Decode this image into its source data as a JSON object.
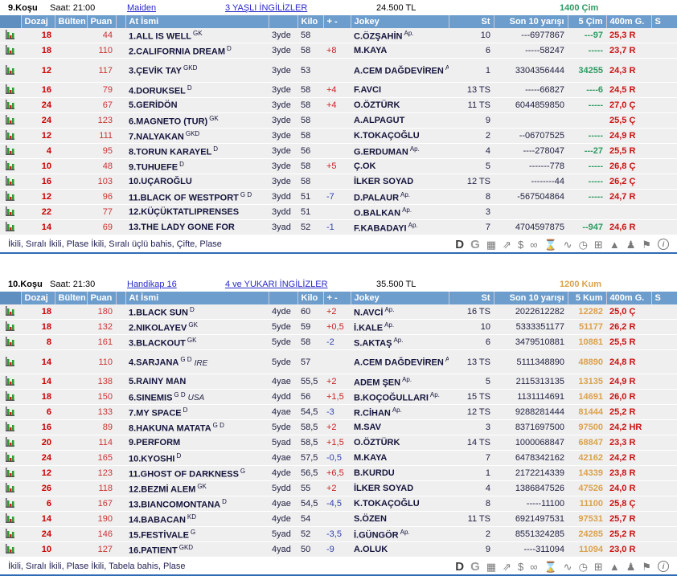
{
  "colors": {
    "header_bar": "#6d9dcc",
    "race1_accent": "#2e9b62",
    "race2_accent": "#dba24e",
    "negative_diff": "#3344aa",
    "positive_diff": "#cc2222",
    "g400_red": "#cc1111",
    "link_blue": "#2929c8"
  },
  "races": [
    {
      "race_no": "9.Koşu",
      "time_label": "Saat: 21:00",
      "race_type": "Maiden",
      "group": "3 YAŞLI İNGİLİZLER",
      "prize": "24.500 TL",
      "distance": "1400 Çim",
      "accent_color": "#2e9b62",
      "columns": [
        "",
        "Dozaj",
        "Bülten",
        "Puan",
        "",
        "At İsmi",
        "",
        "Kilo",
        "+ -",
        "Jokey",
        "St",
        "Son 10 yarışı",
        "5 Çim",
        "400m G.",
        "S"
      ],
      "bets": "İkili, Sıralı İkili, Plase İkili, Sıralı üçlü bahis, Çifte, Plase",
      "horses": [
        {
          "dozaj": "18",
          "bulten": "",
          "puan": "44",
          "name": "1.ALL IS WELL",
          "sup": "GK",
          "country": "",
          "age": "3yde",
          "kilo": "58",
          "diff": "",
          "jockey": "C.ÖZŞAHİN",
          "jockey_sup": "Ap.",
          "st": "10",
          "son10": "---6977867",
          "last5": "---97",
          "g400": "25,3 R",
          "tall": false
        },
        {
          "dozaj": "18",
          "bulten": "",
          "puan": "110",
          "name": "2.CALIFORNIA DREAM",
          "sup": "D",
          "country": "",
          "age": "3yde",
          "kilo": "58",
          "diff": "+8",
          "jockey": "M.KAYA",
          "jockey_sup": "",
          "st": "6",
          "son10": "-----58247",
          "last5": "-----",
          "g400": "23,7 R",
          "tall": false
        },
        {
          "dozaj": "12",
          "bulten": "",
          "puan": "117",
          "name": "3.ÇEVİK TAY",
          "sup": "GKD",
          "country": "",
          "age": "3yde",
          "kilo": "53",
          "diff": "",
          "jockey": "A.CEM DAĞDEVİREN",
          "jockey_sup": "Ap.",
          "st": "1",
          "son10": "3304356444",
          "last5": "34255",
          "g400": "24,3 R",
          "tall": true
        },
        {
          "dozaj": "16",
          "bulten": "",
          "puan": "79",
          "name": "4.DORUKSEL",
          "sup": "D",
          "country": "",
          "age": "3yde",
          "kilo": "58",
          "diff": "+4",
          "jockey": "F.AVCI",
          "jockey_sup": "",
          "st": "13 TS",
          "son10": "-----66827",
          "last5": "----6",
          "g400": "24,5 R",
          "tall": false
        },
        {
          "dozaj": "24",
          "bulten": "",
          "puan": "67",
          "name": "5.GERİDÖN",
          "sup": "",
          "country": "",
          "age": "3yde",
          "kilo": "58",
          "diff": "+4",
          "jockey": "O.ÖZTÜRK",
          "jockey_sup": "",
          "st": "11 TS",
          "son10": "6044859850",
          "last5": "-----",
          "g400": "27,0 Ç",
          "tall": false
        },
        {
          "dozaj": "24",
          "bulten": "",
          "puan": "123",
          "name": "6.MAGNETO (TUR)",
          "sup": "GK",
          "country": "",
          "age": "3yde",
          "kilo": "58",
          "diff": "",
          "jockey": "A.ALPAGUT",
          "jockey_sup": "",
          "st": "9",
          "son10": "",
          "last5": "",
          "g400": "25,5 Ç",
          "tall": false
        },
        {
          "dozaj": "12",
          "bulten": "",
          "puan": "111",
          "name": "7.NALYAKAN",
          "sup": "GKD",
          "country": "",
          "age": "3yde",
          "kilo": "58",
          "diff": "",
          "jockey": "K.TOKAÇOĞLU",
          "jockey_sup": "",
          "st": "2",
          "son10": "--06707525",
          "last5": "-----",
          "g400": "24,9 R",
          "tall": false
        },
        {
          "dozaj": "4",
          "bulten": "",
          "puan": "95",
          "name": "8.TORUN KARAYEL",
          "sup": "D",
          "country": "",
          "age": "3yde",
          "kilo": "56",
          "diff": "",
          "jockey": "G.ERDUMAN",
          "jockey_sup": "Ap.",
          "st": "4",
          "son10": "----278047",
          "last5": "---27",
          "g400": "25,5 R",
          "tall": false
        },
        {
          "dozaj": "10",
          "bulten": "",
          "puan": "48",
          "name": "9.TUHUEFE",
          "sup": "D",
          "country": "",
          "age": "3yde",
          "kilo": "58",
          "diff": "+5",
          "jockey": "Ç.OK",
          "jockey_sup": "",
          "st": "5",
          "son10": "-------778",
          "last5": "-----",
          "g400": "26,8 Ç",
          "tall": false
        },
        {
          "dozaj": "16",
          "bulten": "",
          "puan": "103",
          "name": "10.UÇAROĞLU",
          "sup": "",
          "country": "",
          "age": "3yde",
          "kilo": "58",
          "diff": "",
          "jockey": "İLKER SOYAD",
          "jockey_sup": "",
          "st": "12 TS",
          "son10": "--------44",
          "last5": "-----",
          "g400": "26,2 Ç",
          "tall": false
        },
        {
          "dozaj": "12",
          "bulten": "",
          "puan": "96",
          "name": "11.BLACK OF WESTPORT",
          "sup": "G D",
          "country": "",
          "age": "3ydd",
          "kilo": "51",
          "diff": "-7",
          "jockey": "D.PALAUR",
          "jockey_sup": "Ap.",
          "st": "8",
          "son10": "-567504864",
          "last5": "-----",
          "g400": "24,7 R",
          "tall": false
        },
        {
          "dozaj": "22",
          "bulten": "",
          "puan": "77",
          "name": "12.KÜÇÜKTATLIPRENSES",
          "sup": "",
          "country": "",
          "age": "3ydd",
          "kilo": "51",
          "diff": "",
          "jockey": "O.BALKAN",
          "jockey_sup": "Ap.",
          "st": "3",
          "son10": "",
          "last5": "",
          "g400": "",
          "tall": false
        },
        {
          "dozaj": "14",
          "bulten": "",
          "puan": "69",
          "name": "13.THE LADY GONE FOR",
          "sup": "",
          "country": "",
          "age": "3yad",
          "kilo": "52",
          "diff": "-1",
          "jockey": "F.KABADAYI",
          "jockey_sup": "Ap.",
          "st": "7",
          "son10": "4704597875",
          "last5": "--947",
          "g400": "24,6 R",
          "tall": false
        }
      ]
    },
    {
      "race_no": "10.Koşu",
      "time_label": "Saat: 21:30",
      "race_type": "Handikap 16",
      "group": "4 ve YUKARI İNGİLİZLER",
      "prize": "35.500 TL",
      "distance": "1200 Kum",
      "accent_color": "#dba24e",
      "columns": [
        "",
        "Dozaj",
        "Bülten",
        "Puan",
        "",
        "At İsmi",
        "",
        "Kilo",
        "+ -",
        "Jokey",
        "St",
        "Son 10 yarışı",
        "5 Kum",
        "400m G.",
        "S"
      ],
      "bets": "İkili, Sıralı İkili, Plase İkili, Tabela bahis, Plase",
      "horses": [
        {
          "dozaj": "18",
          "bulten": "",
          "puan": "180",
          "name": "1.BLACK SUN",
          "sup": "D",
          "country": "",
          "age": "4yde",
          "kilo": "60",
          "diff": "+2",
          "jockey": "N.AVCİ",
          "jockey_sup": "Ap.",
          "st": "16 TS",
          "son10": "2022612282",
          "last5": "12282",
          "g400": "25,0 Ç",
          "tall": false
        },
        {
          "dozaj": "18",
          "bulten": "",
          "puan": "132",
          "name": "2.NIKOLAYEV",
          "sup": "GK",
          "country": "",
          "age": "5yde",
          "kilo": "59",
          "diff": "+0,5",
          "jockey": "İ.KALE",
          "jockey_sup": "Ap.",
          "st": "10",
          "son10": "5333351177",
          "last5": "51177",
          "g400": "26,2 R",
          "tall": false
        },
        {
          "dozaj": "8",
          "bulten": "",
          "puan": "161",
          "name": "3.BLACKOUT",
          "sup": "GK",
          "country": "",
          "age": "5yde",
          "kilo": "58",
          "diff": "-2",
          "jockey": "S.AKTAŞ",
          "jockey_sup": "Ap.",
          "st": "6",
          "son10": "3479510881",
          "last5": "10881",
          "g400": "25,5 R",
          "tall": false
        },
        {
          "dozaj": "14",
          "bulten": "",
          "puan": "110",
          "name": "4.SARJANA",
          "sup": "G D",
          "country": "IRE",
          "age": "5yde",
          "kilo": "57",
          "diff": "",
          "jockey": "A.CEM DAĞDEVİREN",
          "jockey_sup": "Ap.",
          "st": "13 TS",
          "son10": "5111348890",
          "last5": "48890",
          "g400": "24,8 R",
          "tall": true
        },
        {
          "dozaj": "14",
          "bulten": "",
          "puan": "138",
          "name": "5.RAINY MAN",
          "sup": "",
          "country": "",
          "age": "4yae",
          "kilo": "55,5",
          "diff": "+2",
          "jockey": "ADEM ŞEN",
          "jockey_sup": "Ap.",
          "st": "5",
          "son10": "2115313135",
          "last5": "13135",
          "g400": "24,9 R",
          "tall": false
        },
        {
          "dozaj": "18",
          "bulten": "",
          "puan": "150",
          "name": "6.SINEMIS",
          "sup": "G D",
          "country": "USA",
          "age": "4ydd",
          "kilo": "56",
          "diff": "+1,5",
          "jockey": "B.KOÇOĞULLARI",
          "jockey_sup": "Ap.",
          "st": "15 TS",
          "son10": "1131114691",
          "last5": "14691",
          "g400": "26,0 R",
          "tall": false
        },
        {
          "dozaj": "6",
          "bulten": "",
          "puan": "133",
          "name": "7.MY SPACE",
          "sup": "D",
          "country": "",
          "age": "4yae",
          "kilo": "54,5",
          "diff": "-3",
          "jockey": "R.CİHAN",
          "jockey_sup": "Ap.",
          "st": "12 TS",
          "son10": "9288281444",
          "last5": "81444",
          "g400": "25,2 R",
          "tall": false
        },
        {
          "dozaj": "16",
          "bulten": "",
          "puan": "89",
          "name": "8.HAKUNA MATATA",
          "sup": "G D",
          "country": "",
          "age": "5yde",
          "kilo": "58,5",
          "diff": "+2",
          "jockey": "M.SAV",
          "jockey_sup": "",
          "st": "3",
          "son10": "8371697500",
          "last5": "97500",
          "g400": "24,2 HR",
          "tall": false
        },
        {
          "dozaj": "20",
          "bulten": "",
          "puan": "114",
          "name": "9.PERFORM",
          "sup": "",
          "country": "",
          "age": "5yad",
          "kilo": "58,5",
          "diff": "+1,5",
          "jockey": "O.ÖZTÜRK",
          "jockey_sup": "",
          "st": "14 TS",
          "son10": "1000068847",
          "last5": "68847",
          "g400": "23,3 R",
          "tall": false
        },
        {
          "dozaj": "24",
          "bulten": "",
          "puan": "165",
          "name": "10.KYOSHI",
          "sup": "D",
          "country": "",
          "age": "4yae",
          "kilo": "57,5",
          "diff": "-0,5",
          "jockey": "M.KAYA",
          "jockey_sup": "",
          "st": "7",
          "son10": "6478342162",
          "last5": "42162",
          "g400": "24,2 R",
          "tall": false
        },
        {
          "dozaj": "12",
          "bulten": "",
          "puan": "123",
          "name": "11.GHOST OF DARKNESS",
          "sup": "G",
          "country": "",
          "age": "4yde",
          "kilo": "56,5",
          "diff": "+6,5",
          "jockey": "B.KURDU",
          "jockey_sup": "",
          "st": "1",
          "son10": "2172214339",
          "last5": "14339",
          "g400": "23,8 R",
          "tall": false
        },
        {
          "dozaj": "26",
          "bulten": "",
          "puan": "118",
          "name": "12.BEZMİ ALEM",
          "sup": "GK",
          "country": "",
          "age": "5ydd",
          "kilo": "55",
          "diff": "+2",
          "jockey": "İLKER SOYAD",
          "jockey_sup": "",
          "st": "4",
          "son10": "1386847526",
          "last5": "47526",
          "g400": "24,0 R",
          "tall": false
        },
        {
          "dozaj": "6",
          "bulten": "",
          "puan": "167",
          "name": "13.BIANCOMONTANA",
          "sup": "D",
          "country": "",
          "age": "4yae",
          "kilo": "54,5",
          "diff": "-4,5",
          "jockey": "K.TOKAÇOĞLU",
          "jockey_sup": "",
          "st": "8",
          "son10": "-----11100",
          "last5": "11100",
          "g400": "25,8 Ç",
          "tall": false
        },
        {
          "dozaj": "14",
          "bulten": "",
          "puan": "190",
          "name": "14.BABACAN",
          "sup": "KD",
          "country": "",
          "age": "4yde",
          "kilo": "54",
          "diff": "",
          "jockey": "S.ÖZEN",
          "jockey_sup": "",
          "st": "11 TS",
          "son10": "6921497531",
          "last5": "97531",
          "g400": "25,7 R",
          "tall": false
        },
        {
          "dozaj": "24",
          "bulten": "",
          "puan": "146",
          "name": "15.FESTİVALE",
          "sup": "G",
          "country": "",
          "age": "5yad",
          "kilo": "52",
          "diff": "-3,5",
          "jockey": "İ.GÜNGÖR",
          "jockey_sup": "Ap.",
          "st": "2",
          "son10": "8551324285",
          "last5": "24285",
          "g400": "25,2 R",
          "tall": false
        },
        {
          "dozaj": "10",
          "bulten": "",
          "puan": "127",
          "name": "16.PATIENT",
          "sup": "GKD",
          "country": "",
          "age": "4yad",
          "kilo": "50",
          "diff": "-9",
          "jockey": "A.OLUK",
          "jockey_sup": "",
          "st": "9",
          "son10": "----311094",
          "last5": "11094",
          "g400": "23,0 R",
          "tall": false
        }
      ]
    }
  ],
  "footer_icons": [
    {
      "name": "letter-d-icon",
      "glyph": "D",
      "variant": "letter-dark"
    },
    {
      "name": "letter-g-icon",
      "glyph": "G",
      "variant": "letter-gray"
    },
    {
      "name": "probables-icon",
      "glyph": "▦",
      "variant": "symbol"
    },
    {
      "name": "agf-trend-icon",
      "glyph": "⇗",
      "variant": "symbol"
    },
    {
      "name": "dollar-icon",
      "glyph": "$",
      "variant": "symbol"
    },
    {
      "name": "binoculars-icon",
      "glyph": "∞",
      "variant": "symbol"
    },
    {
      "name": "hourglass-icon",
      "glyph": "⌛",
      "variant": "symbol"
    },
    {
      "name": "chart-line-icon",
      "glyph": "∿",
      "variant": "symbol"
    },
    {
      "name": "clock-icon",
      "glyph": "◷",
      "variant": "symbol"
    },
    {
      "name": "calculator-icon",
      "glyph": "⊞",
      "variant": "symbol"
    },
    {
      "name": "hills-icon",
      "glyph": "▲",
      "variant": "symbol"
    },
    {
      "name": "crowd-icon",
      "glyph": "♟",
      "variant": "symbol"
    },
    {
      "name": "photo-finish-icon",
      "glyph": "⚑",
      "variant": "symbol"
    },
    {
      "name": "info-icon",
      "glyph": "i",
      "variant": "circle"
    }
  ]
}
